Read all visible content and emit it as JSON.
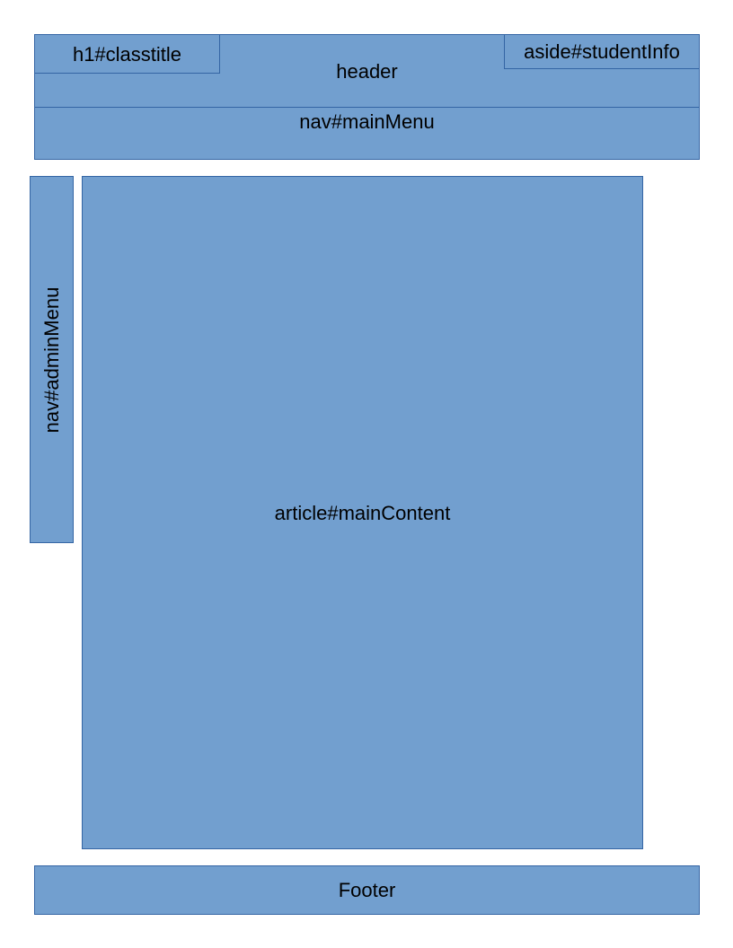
{
  "colors": {
    "box_fill": "#729fcf",
    "box_border": "#3465a4",
    "text": "#000000",
    "background": "#ffffff"
  },
  "diagram": {
    "header": {
      "label": "header"
    },
    "classtitle": {
      "label": "h1#classtitle"
    },
    "studentinfo": {
      "label": "aside#studentInfo"
    },
    "mainmenu": {
      "label": "nav#mainMenu"
    },
    "adminmenu": {
      "label": "nav#adminMenu"
    },
    "maincontent": {
      "label": "article#mainContent"
    },
    "footer": {
      "label": "Footer"
    }
  }
}
